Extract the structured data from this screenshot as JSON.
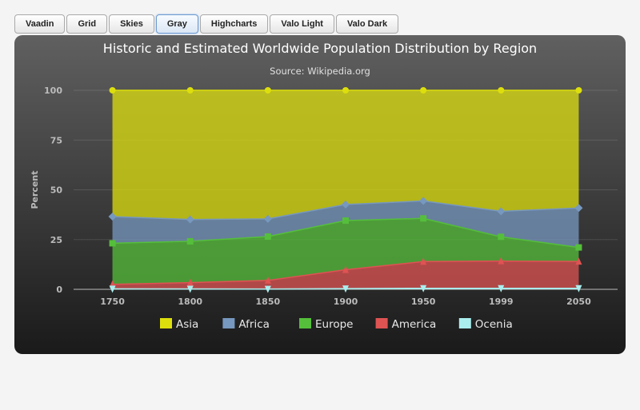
{
  "themes": {
    "buttons": [
      "Vaadin",
      "Grid",
      "Skies",
      "Gray",
      "Highcharts",
      "Valo Light",
      "Valo Dark"
    ],
    "active": "Gray"
  },
  "chart_data": {
    "type": "area",
    "stacking": "percent",
    "title": "Historic and Estimated Worldwide Population Distribution by Region",
    "subtitle": "Source: Wikipedia.org",
    "ylabel": "Percent",
    "categories": [
      "1750",
      "1800",
      "1850",
      "1900",
      "1950",
      "1999",
      "2050"
    ],
    "ylim": [
      0,
      100
    ],
    "yticks": [
      0,
      25,
      50,
      75,
      100
    ],
    "legend_position": "bottom",
    "series": [
      {
        "name": "Asia",
        "color": "#dddf0d",
        "marker": "circle",
        "values": [
          502,
          635,
          809,
          947,
          1402,
          3634,
          5268
        ]
      },
      {
        "name": "Africa",
        "color": "#7798bf",
        "marker": "diamond",
        "values": [
          106,
          107,
          111,
          133,
          221,
          767,
          1766
        ]
      },
      {
        "name": "Europe",
        "color": "#55bf3b",
        "marker": "square",
        "values": [
          163,
          203,
          276,
          408,
          547,
          729,
          628
        ]
      },
      {
        "name": "America",
        "color": "#df5353",
        "marker": "triangle",
        "values": [
          18,
          31,
          54,
          156,
          339,
          818,
          1201
        ]
      },
      {
        "name": "Ocenia",
        "color": "#aaeeee",
        "marker": "triangle-down",
        "values": [
          2,
          2,
          2,
          6,
          13,
          30,
          46
        ]
      }
    ]
  }
}
